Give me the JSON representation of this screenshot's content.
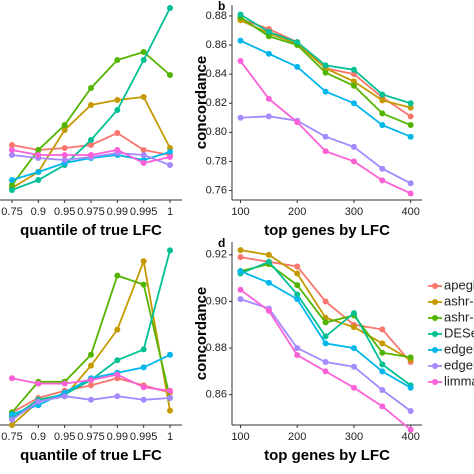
{
  "chart_data": [
    {
      "type": "line",
      "x_label": "quantile of true LFC",
      "categories": [
        "0.75",
        "0.9",
        "0.95",
        "0.975",
        "0.99",
        "0.995",
        "1"
      ],
      "ylim": [
        0,
        1
      ],
      "series": [
        {
          "name": "apegl",
          "color": "#F8766D",
          "values": [
            0.275,
            0.25,
            0.26,
            0.275,
            0.335,
            0.25,
            0.225
          ]
        },
        {
          "name": "ashr-D",
          "color": "#C49A00",
          "values": [
            0.06,
            0.14,
            0.35,
            0.475,
            0.5,
            0.515,
            0.26
          ]
        },
        {
          "name": "ashr-l",
          "color": "#53B400",
          "values": [
            0.075,
            0.25,
            0.375,
            0.56,
            0.7,
            0.74,
            0.625
          ]
        },
        {
          "name": "DESe",
          "color": "#00C094",
          "values": [
            0.05,
            0.1,
            0.175,
            0.3,
            0.45,
            0.7,
            0.96
          ]
        },
        {
          "name": "edgeF",
          "color": "#00B6EB",
          "values": [
            0.1,
            0.14,
            0.185,
            0.21,
            0.225,
            0.2,
            0.24
          ]
        },
        {
          "name": "edgeF",
          "color": "#A58AFF",
          "values": [
            0.225,
            0.21,
            0.2,
            0.215,
            0.235,
            0.225,
            0.175
          ]
        },
        {
          "name": "limma",
          "color": "#FB61D7",
          "values": [
            0.25,
            0.225,
            0.225,
            0.225,
            0.25,
            0.185,
            0.215
          ]
        }
      ]
    },
    {
      "type": "line",
      "panel": "b",
      "x_label": "top genes by LFC",
      "y_label": "concordance",
      "x": [
        100,
        150,
        200,
        250,
        300,
        350,
        400
      ],
      "xlim": [
        85,
        420
      ],
      "xticks": [
        100,
        200,
        300,
        400
      ],
      "ylim": [
        0.7535,
        0.8875
      ],
      "yticks": [
        0.76,
        0.78,
        {
          "value": 0.8,
          "label": "0.80"
        },
        0.82,
        0.84,
        0.86,
        0.88
      ],
      "series": [
        {
          "name": "apegl",
          "color": "#F8766D",
          "values": [
            0.878,
            0.871,
            0.862,
            0.844,
            0.84,
            0.824,
            0.811
          ]
        },
        {
          "name": "ashr-D",
          "color": "#C49A00",
          "values": [
            0.877,
            0.868,
            0.861,
            0.844,
            0.835,
            0.822,
            0.817
          ]
        },
        {
          "name": "ashr-l",
          "color": "#53B400",
          "values": [
            0.879,
            0.866,
            0.86,
            0.841,
            0.832,
            0.813,
            0.805
          ]
        },
        {
          "name": "DESe",
          "color": "#00C094",
          "values": [
            0.881,
            0.869,
            0.862,
            0.846,
            0.843,
            0.826,
            0.82
          ]
        },
        {
          "name": "edgeF",
          "color": "#00B6EB",
          "values": [
            0.863,
            0.854,
            0.845,
            0.828,
            0.82,
            0.805,
            0.797
          ]
        },
        {
          "name": "edgeF",
          "color": "#A58AFF",
          "values": [
            0.81,
            0.811,
            0.808,
            0.797,
            0.79,
            0.775,
            0.765
          ]
        },
        {
          "name": "limma",
          "color": "#FB61D7",
          "values": [
            0.849,
            0.823,
            0.807,
            0.787,
            0.78,
            0.767,
            0.758
          ]
        }
      ]
    },
    {
      "type": "line",
      "x_label": "quantile of true LFC",
      "categories": [
        "0.75",
        "0.9",
        "0.95",
        "0.975",
        "0.99",
        "0.995",
        "1"
      ],
      "ylim": [
        0,
        1
      ],
      "series": [
        {
          "name": "apegl",
          "color": "#F8766D",
          "values": [
            0.07,
            0.15,
            0.19,
            0.22,
            0.26,
            0.22,
            0.18
          ]
        },
        {
          "name": "ashr-D",
          "color": "#C49A00",
          "values": [
            0.0,
            0.13,
            0.16,
            0.33,
            0.53,
            0.91,
            0.08
          ]
        },
        {
          "name": "ashr-l",
          "color": "#53B400",
          "values": [
            0.07,
            0.24,
            0.24,
            0.39,
            0.83,
            0.78,
            0.15
          ]
        },
        {
          "name": "DESe",
          "color": "#00C094",
          "values": [
            0.04,
            0.14,
            0.17,
            0.25,
            0.36,
            0.42,
            0.97
          ]
        },
        {
          "name": "edgeF",
          "color": "#00B6EB",
          "values": [
            0.06,
            0.11,
            0.18,
            0.26,
            0.29,
            0.32,
            0.39
          ]
        },
        {
          "name": "edgeF",
          "color": "#A58AFF",
          "values": [
            0.03,
            0.13,
            0.16,
            0.14,
            0.16,
            0.14,
            0.15
          ]
        },
        {
          "name": "limma",
          "color": "#FB61D7",
          "values": [
            0.26,
            0.23,
            0.23,
            0.25,
            0.28,
            0.21,
            0.19
          ]
        }
      ]
    },
    {
      "type": "line",
      "panel": "d",
      "x_label": "top genes by LFC",
      "y_label": "concordance",
      "x": [
        100,
        150,
        200,
        250,
        300,
        350,
        400
      ],
      "xlim": [
        85,
        420
      ],
      "xticks": [
        100,
        200,
        300,
        400
      ],
      "ylim": [
        0.847,
        0.9255
      ],
      "yticks": [
        0.86,
        0.88,
        {
          "value": 0.9,
          "label": "0.90"
        },
        0.92
      ],
      "series": [
        {
          "name": "apegl",
          "color": "#F8766D",
          "values": [
            0.919,
            0.917,
            0.915,
            0.9,
            0.89,
            0.888,
            0.874
          ]
        },
        {
          "name": "ashr-D",
          "color": "#C49A00",
          "values": [
            0.922,
            0.92,
            0.912,
            0.893,
            0.889,
            0.882,
            0.875
          ]
        },
        {
          "name": "ashr-l",
          "color": "#53B400",
          "values": [
            0.913,
            0.916,
            0.907,
            0.891,
            0.894,
            0.878,
            0.876
          ]
        },
        {
          "name": "DESe",
          "color": "#00C094",
          "values": [
            0.912,
            0.917,
            0.903,
            0.885,
            0.895,
            0.873,
            0.864
          ]
        },
        {
          "name": "edgeF",
          "color": "#00B6EB",
          "values": [
            0.913,
            0.908,
            0.901,
            0.882,
            0.88,
            0.87,
            0.863
          ]
        },
        {
          "name": "edgeF",
          "color": "#A58AFF",
          "values": [
            0.901,
            0.897,
            0.88,
            0.874,
            0.872,
            0.862,
            0.853
          ]
        },
        {
          "name": "limma",
          "color": "#FB61D7",
          "values": [
            0.905,
            0.896,
            0.877,
            0.87,
            0.863,
            0.855,
            0.845
          ]
        }
      ]
    }
  ]
}
